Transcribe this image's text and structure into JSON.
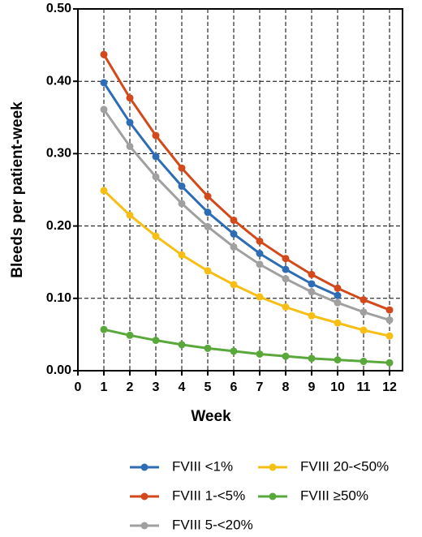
{
  "chart_data": {
    "type": "line",
    "x_label": "Week",
    "y_label": "Bleeds per patient-week",
    "x": [
      1,
      2,
      3,
      4,
      5,
      6,
      7,
      8,
      9,
      10,
      11,
      12
    ],
    "xlim": [
      0,
      12.5
    ],
    "xticks": [
      0,
      1,
      2,
      3,
      4,
      5,
      6,
      7,
      8,
      9,
      10,
      11,
      12
    ],
    "ylim": [
      0,
      0.5
    ],
    "yticks": [
      {
        "value": 0,
        "label": "0.00"
      },
      {
        "value": 0.1,
        "label": "0.10"
      },
      {
        "value": 0.2,
        "label": "0.20"
      },
      {
        "value": 0.3,
        "label": "0.30"
      },
      {
        "value": 0.4,
        "label": "0.40"
      },
      {
        "value": 0.5,
        "label": "0.50"
      }
    ],
    "grid": true,
    "series": [
      {
        "name": "FVIII <1%",
        "color": "#2e6db4",
        "values": [
          0.398,
          0.343,
          0.296,
          0.255,
          0.219,
          0.189,
          0.162,
          0.14,
          0.12,
          0.104,
          null,
          null
        ]
      },
      {
        "name": "FVIII 1-<5%",
        "color": "#d2491c",
        "values": [
          0.437,
          0.377,
          0.325,
          0.28,
          0.241,
          0.208,
          0.179,
          0.155,
          0.133,
          0.114,
          0.098,
          0.084
        ]
      },
      {
        "name": "FVIII 5-<20%",
        "color": "#a0a0a0",
        "values": [
          0.361,
          0.31,
          0.268,
          0.231,
          0.199,
          0.171,
          0.147,
          0.127,
          0.109,
          0.094,
          0.081,
          0.07
        ]
      },
      {
        "name": "FVIII 20-<50%",
        "color": "#f7be16",
        "values": [
          0.249,
          0.215,
          0.186,
          0.16,
          0.138,
          0.119,
          0.102,
          0.088,
          0.076,
          0.066,
          0.056,
          0.048
        ]
      },
      {
        "name": "FVIII ≥50%",
        "color": "#5aa83c",
        "values": [
          0.057,
          0.049,
          0.042,
          0.036,
          0.031,
          0.027,
          0.023,
          0.02,
          0.017,
          0.015,
          0.013,
          0.011
        ]
      }
    ]
  }
}
